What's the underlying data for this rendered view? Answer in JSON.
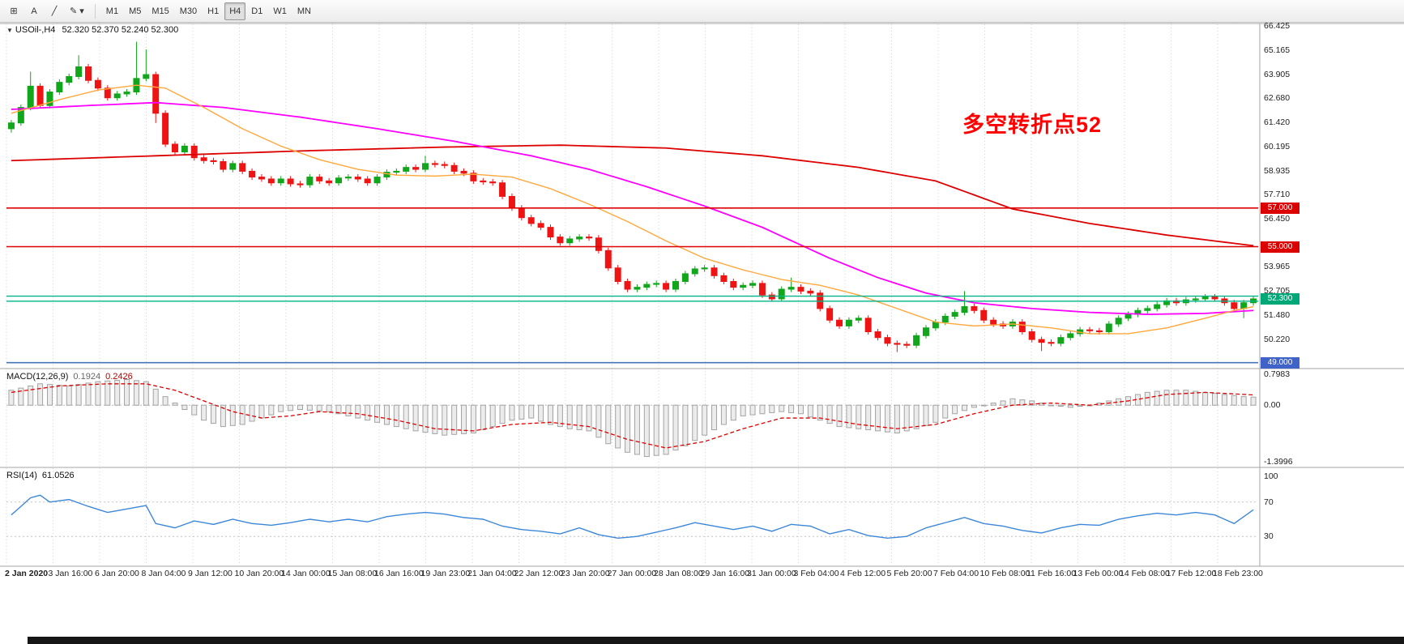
{
  "toolbar": {
    "left_tools": [
      {
        "id": "crosshair",
        "glyph": "⊞",
        "caret": false
      },
      {
        "id": "text-tool",
        "glyph": "A",
        "caret": false
      },
      {
        "id": "trendline-tool",
        "glyph": "╱",
        "caret": false
      },
      {
        "id": "draw-tools",
        "glyph": "✎",
        "caret": true
      }
    ],
    "timeframes": [
      "M1",
      "M5",
      "M15",
      "M30",
      "H1",
      "H4",
      "D1",
      "W1",
      "MN"
    ],
    "active_timeframe": "H4"
  },
  "chart": {
    "symbol_caret": "▼",
    "title_symbol": "USOil-,H4",
    "title_ohlc": "52.320 52.370 52.240 52.300",
    "annotation": {
      "text": "多空转折点52",
      "color": "#ff0000"
    },
    "price_scale_labels": [
      "66.425",
      "65.165",
      "63.905",
      "62.680",
      "61.420",
      "60.195",
      "58.935",
      "57.710",
      "56.450",
      "53.965",
      "52.705",
      "51.480",
      "50.220"
    ],
    "hlines": [
      {
        "price": 57.0,
        "label": "57.000",
        "color": "#dd0000",
        "badge": "#dd0000"
      },
      {
        "price": 55.0,
        "label": "55.000",
        "color": "#dd0000",
        "badge": "#dd0000"
      },
      {
        "price": 49.0,
        "label": "49.000",
        "color": "#4a74b8",
        "badge": "#3f63c8"
      }
    ],
    "band_lines": {
      "prices": [
        52.44,
        52.18
      ],
      "color": "#00b487"
    },
    "current_price": {
      "value": 52.3,
      "label": "52.300",
      "badge": "#00a878"
    }
  },
  "chart_data": {
    "type": "candlestick",
    "symbol": "USOil",
    "timeframe": "H4",
    "ylim": [
      48.7,
      66.5
    ],
    "ohlc_current": {
      "open": 52.32,
      "high": 52.37,
      "low": 52.24,
      "close": 52.3
    },
    "open_first": 61.1,
    "closes": [
      61.4,
      62.2,
      63.3,
      62.3,
      63.0,
      63.5,
      63.8,
      64.3,
      63.6,
      63.2,
      62.7,
      62.9,
      63.0,
      63.7,
      63.9,
      61.9,
      60.3,
      59.9,
      60.2,
      59.6,
      59.45,
      59.4,
      59.0,
      59.3,
      58.9,
      58.6,
      58.5,
      58.3,
      58.5,
      58.25,
      58.2,
      58.6,
      58.4,
      58.3,
      58.55,
      58.6,
      58.5,
      58.3,
      58.6,
      58.85,
      58.9,
      59.1,
      59.0,
      59.3,
      59.25,
      59.2,
      58.9,
      58.8,
      58.4,
      58.35,
      58.3,
      57.6,
      57.0,
      56.5,
      56.2,
      56.0,
      55.5,
      55.2,
      55.4,
      55.5,
      55.45,
      54.8,
      53.9,
      53.2,
      52.8,
      52.9,
      53.05,
      53.1,
      52.8,
      53.2,
      53.6,
      53.85,
      53.9,
      53.5,
      53.2,
      52.9,
      53.0,
      53.1,
      52.5,
      52.3,
      52.8,
      52.9,
      52.7,
      52.6,
      51.8,
      51.2,
      50.9,
      51.2,
      51.3,
      50.6,
      50.3,
      50.0,
      49.95,
      49.9,
      50.4,
      50.8,
      51.1,
      51.4,
      51.6,
      51.9,
      51.7,
      51.2,
      51.0,
      50.9,
      51.1,
      50.6,
      50.2,
      50.05,
      50.0,
      50.3,
      50.5,
      50.7,
      50.65,
      50.6,
      51.0,
      51.3,
      51.5,
      51.7,
      51.8,
      52.0,
      52.2,
      52.1,
      52.25,
      52.3,
      52.4,
      52.3,
      52.1,
      51.8,
      52.1,
      52.3
    ],
    "spikes": {
      "0": {
        "l": 60.9
      },
      "2": {
        "h": 64.05
      },
      "7": {
        "h": 64.9
      },
      "13": {
        "h": 65.6
      },
      "14": {
        "h": 65.2
      },
      "15": {
        "l": 61.4
      },
      "43": {
        "h": 59.7
      },
      "81": {
        "h": 53.4
      },
      "92": {
        "l": 49.55
      },
      "99": {
        "h": 52.7
      },
      "107": {
        "l": 49.6
      },
      "128": {
        "l": 51.3
      }
    },
    "ma_red_anchors": [
      [
        0,
        59.45
      ],
      [
        15,
        59.7
      ],
      [
        30,
        59.95
      ],
      [
        45,
        60.15
      ],
      [
        57,
        60.25
      ],
      [
        68,
        60.1
      ],
      [
        78,
        59.7
      ],
      [
        88,
        59.1
      ],
      [
        96,
        58.4
      ],
      [
        104,
        56.95
      ],
      [
        112,
        56.2
      ],
      [
        120,
        55.6
      ],
      [
        129,
        55.05
      ]
    ],
    "ma_magenta_anchors": [
      [
        0,
        62.1
      ],
      [
        8,
        62.3
      ],
      [
        15,
        62.45
      ],
      [
        22,
        62.2
      ],
      [
        30,
        61.7
      ],
      [
        38,
        61.1
      ],
      [
        46,
        60.45
      ],
      [
        54,
        59.7
      ],
      [
        60,
        59.0
      ],
      [
        66,
        58.1
      ],
      [
        72,
        57.1
      ],
      [
        78,
        56.0
      ],
      [
        85,
        54.4
      ],
      [
        90,
        53.4
      ],
      [
        95,
        52.6
      ],
      [
        100,
        52.1
      ],
      [
        106,
        51.8
      ],
      [
        112,
        51.6
      ],
      [
        118,
        51.5
      ],
      [
        124,
        51.55
      ],
      [
        129,
        51.7
      ]
    ],
    "ma_orange_anchors": [
      [
        0,
        61.9
      ],
      [
        5,
        62.6
      ],
      [
        9,
        63.1
      ],
      [
        13,
        63.35
      ],
      [
        16,
        63.2
      ],
      [
        20,
        62.2
      ],
      [
        24,
        61.1
      ],
      [
        28,
        60.2
      ],
      [
        32,
        59.5
      ],
      [
        36,
        59.0
      ],
      [
        40,
        58.7
      ],
      [
        44,
        58.65
      ],
      [
        48,
        58.75
      ],
      [
        52,
        58.6
      ],
      [
        56,
        58.0
      ],
      [
        60,
        57.2
      ],
      [
        64,
        56.3
      ],
      [
        68,
        55.3
      ],
      [
        72,
        54.4
      ],
      [
        76,
        53.8
      ],
      [
        80,
        53.3
      ],
      [
        84,
        53.0
      ],
      [
        88,
        52.5
      ],
      [
        92,
        51.8
      ],
      [
        96,
        51.1
      ],
      [
        100,
        50.9
      ],
      [
        104,
        51.0
      ],
      [
        108,
        50.8
      ],
      [
        112,
        50.5
      ],
      [
        116,
        50.5
      ],
      [
        120,
        50.8
      ],
      [
        124,
        51.3
      ],
      [
        127,
        51.7
      ],
      [
        129,
        51.9
      ]
    ]
  },
  "macd": {
    "label": "MACD(12,26,9)",
    "value_macd": "0.1924",
    "value_signal": "0.2426",
    "scale": [
      "0.7983",
      "0.00",
      "-1.3996"
    ],
    "range": [
      0.7983,
      -1.3996
    ],
    "hist_anchors": [
      [
        0,
        0.35
      ],
      [
        3,
        0.5
      ],
      [
        6,
        0.45
      ],
      [
        9,
        0.55
      ],
      [
        12,
        0.6
      ],
      [
        14,
        0.55
      ],
      [
        16,
        0.2
      ],
      [
        18,
        -0.1
      ],
      [
        20,
        -0.35
      ],
      [
        22,
        -0.5
      ],
      [
        24,
        -0.45
      ],
      [
        26,
        -0.3
      ],
      [
        28,
        -0.15
      ],
      [
        30,
        -0.1
      ],
      [
        33,
        -0.15
      ],
      [
        36,
        -0.3
      ],
      [
        39,
        -0.45
      ],
      [
        42,
        -0.6
      ],
      [
        45,
        -0.7
      ],
      [
        48,
        -0.65
      ],
      [
        50,
        -0.5
      ],
      [
        52,
        -0.35
      ],
      [
        54,
        -0.3
      ],
      [
        56,
        -0.45
      ],
      [
        58,
        -0.55
      ],
      [
        60,
        -0.6
      ],
      [
        62,
        -0.9
      ],
      [
        64,
        -1.1
      ],
      [
        66,
        -1.2
      ],
      [
        68,
        -1.15
      ],
      [
        70,
        -0.95
      ],
      [
        72,
        -0.7
      ],
      [
        74,
        -0.45
      ],
      [
        76,
        -0.25
      ],
      [
        78,
        -0.2
      ],
      [
        80,
        -0.15
      ],
      [
        82,
        -0.2
      ],
      [
        84,
        -0.35
      ],
      [
        86,
        -0.5
      ],
      [
        88,
        -0.55
      ],
      [
        90,
        -0.6
      ],
      [
        92,
        -0.65
      ],
      [
        94,
        -0.55
      ],
      [
        96,
        -0.4
      ],
      [
        98,
        -0.2
      ],
      [
        100,
        -0.05
      ],
      [
        102,
        0.05
      ],
      [
        104,
        0.15
      ],
      [
        106,
        0.1
      ],
      [
        108,
        0.0
      ],
      [
        110,
        -0.05
      ],
      [
        112,
        0.0
      ],
      [
        114,
        0.1
      ],
      [
        116,
        0.2
      ],
      [
        118,
        0.3
      ],
      [
        120,
        0.35
      ],
      [
        122,
        0.35
      ],
      [
        124,
        0.3
      ],
      [
        126,
        0.25
      ],
      [
        128,
        0.2
      ],
      [
        129,
        0.19
      ]
    ],
    "signal_anchors": [
      [
        0,
        0.3
      ],
      [
        5,
        0.45
      ],
      [
        10,
        0.5
      ],
      [
        14,
        0.5
      ],
      [
        17,
        0.35
      ],
      [
        20,
        0.1
      ],
      [
        23,
        -0.15
      ],
      [
        26,
        -0.3
      ],
      [
        29,
        -0.25
      ],
      [
        32,
        -0.15
      ],
      [
        36,
        -0.2
      ],
      [
        40,
        -0.35
      ],
      [
        44,
        -0.55
      ],
      [
        48,
        -0.6
      ],
      [
        52,
        -0.45
      ],
      [
        56,
        -0.4
      ],
      [
        60,
        -0.5
      ],
      [
        64,
        -0.8
      ],
      [
        68,
        -1.0
      ],
      [
        72,
        -0.85
      ],
      [
        76,
        -0.55
      ],
      [
        80,
        -0.3
      ],
      [
        84,
        -0.3
      ],
      [
        88,
        -0.45
      ],
      [
        92,
        -0.55
      ],
      [
        96,
        -0.45
      ],
      [
        100,
        -0.2
      ],
      [
        104,
        0.0
      ],
      [
        108,
        0.05
      ],
      [
        112,
        0.0
      ],
      [
        116,
        0.1
      ],
      [
        120,
        0.25
      ],
      [
        124,
        0.3
      ],
      [
        129,
        0.24
      ]
    ]
  },
  "rsi": {
    "label": "RSI(14)",
    "value": "61.0526",
    "scale": [
      "100",
      "70",
      "30"
    ],
    "levels": [
      70,
      30
    ],
    "anchors": [
      [
        0,
        55
      ],
      [
        2,
        75
      ],
      [
        3,
        78
      ],
      [
        4,
        70
      ],
      [
        6,
        73
      ],
      [
        8,
        65
      ],
      [
        10,
        58
      ],
      [
        12,
        62
      ],
      [
        14,
        66
      ],
      [
        15,
        45
      ],
      [
        17,
        40
      ],
      [
        19,
        48
      ],
      [
        21,
        44
      ],
      [
        23,
        50
      ],
      [
        25,
        45
      ],
      [
        27,
        43
      ],
      [
        29,
        46
      ],
      [
        31,
        50
      ],
      [
        33,
        47
      ],
      [
        35,
        50
      ],
      [
        37,
        47
      ],
      [
        39,
        53
      ],
      [
        41,
        56
      ],
      [
        43,
        58
      ],
      [
        45,
        56
      ],
      [
        47,
        52
      ],
      [
        49,
        50
      ],
      [
        51,
        42
      ],
      [
        53,
        38
      ],
      [
        55,
        36
      ],
      [
        57,
        33
      ],
      [
        59,
        40
      ],
      [
        61,
        32
      ],
      [
        63,
        28
      ],
      [
        65,
        30
      ],
      [
        67,
        35
      ],
      [
        69,
        40
      ],
      [
        71,
        46
      ],
      [
        73,
        42
      ],
      [
        75,
        38
      ],
      [
        77,
        42
      ],
      [
        79,
        36
      ],
      [
        81,
        44
      ],
      [
        83,
        42
      ],
      [
        85,
        33
      ],
      [
        87,
        38
      ],
      [
        89,
        31
      ],
      [
        91,
        28
      ],
      [
        93,
        30
      ],
      [
        95,
        40
      ],
      [
        97,
        46
      ],
      [
        99,
        52
      ],
      [
        101,
        45
      ],
      [
        103,
        42
      ],
      [
        105,
        37
      ],
      [
        107,
        34
      ],
      [
        109,
        40
      ],
      [
        111,
        44
      ],
      [
        113,
        43
      ],
      [
        115,
        50
      ],
      [
        117,
        54
      ],
      [
        119,
        57
      ],
      [
        121,
        55
      ],
      [
        123,
        58
      ],
      [
        125,
        55
      ],
      [
        127,
        45
      ],
      [
        129,
        61
      ]
    ]
  },
  "time_axis": {
    "labels": [
      "2 Jan 2020",
      "3 Jan 16:00",
      "6 Jan 20:00",
      "8 Jan 04:00",
      "9 Jan 12:00",
      "10 Jan 20:00",
      "14 Jan 00:00",
      "15 Jan 08:00",
      "16 Jan 16:00",
      "19 Jan 23:00",
      "21 Jan 04:00",
      "22 Jan 12:00",
      "23 Jan 20:00",
      "27 Jan 00:00",
      "28 Jan 08:00",
      "29 Jan 16:00",
      "31 Jan 00:00",
      "3 Feb 04:00",
      "4 Feb 12:00",
      "5 Feb 20:00",
      "7 Feb 04:00",
      "10 Feb 08:00",
      "11 Feb 16:00",
      "13 Feb 00:00",
      "14 Feb 08:00",
      "17 Feb 12:00",
      "18 Feb 23:00"
    ]
  },
  "colors": {
    "up": "#11a61b",
    "down": "#ee1414",
    "ma_red": "#dd0000",
    "ma_magenta": "#ff00ff",
    "ma_orange": "#ffa83c",
    "rsi_line": "#3d87d8",
    "macd_signal": "#dd0000",
    "hist_fill": "#ececec",
    "hist_stroke": "#a3a3a3",
    "grid": "#d4d4d4",
    "border": "#a6a6a6"
  }
}
